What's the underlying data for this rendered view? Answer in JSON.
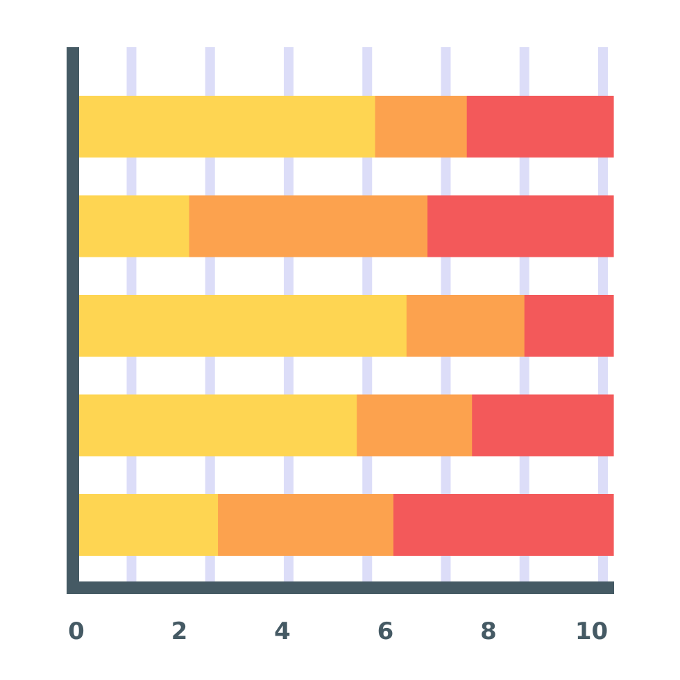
{
  "chart_data": {
    "type": "bar",
    "orientation": "horizontal",
    "stacked": true,
    "title": "",
    "xlabel": "",
    "ylabel": "",
    "xlim": [
      0,
      10
    ],
    "x_ticks": [
      "0",
      "2",
      "4",
      "6",
      "8",
      "10"
    ],
    "gridlines_at": [
      1,
      2.5,
      4,
      5.5,
      7,
      8.5,
      10
    ],
    "grid": true,
    "legend": "none",
    "categories": [
      "",
      "",
      "",
      "",
      ""
    ],
    "series": [
      {
        "color": "#FED552",
        "values": [
          5.65,
          2.1,
          6.25,
          5.3,
          2.65
        ]
      },
      {
        "color": "#FCA24E",
        "values": [
          1.75,
          4.55,
          2.25,
          2.2,
          3.35
        ]
      },
      {
        "color": "#F3595A",
        "values": [
          2.8,
          3.55,
          1.7,
          2.7,
          4.2
        ]
      }
    ],
    "colors": {
      "axis": "#455A64",
      "grid": "#DCDDF8",
      "tick_label": "#455A64",
      "background": "#FFFFFF"
    }
  }
}
